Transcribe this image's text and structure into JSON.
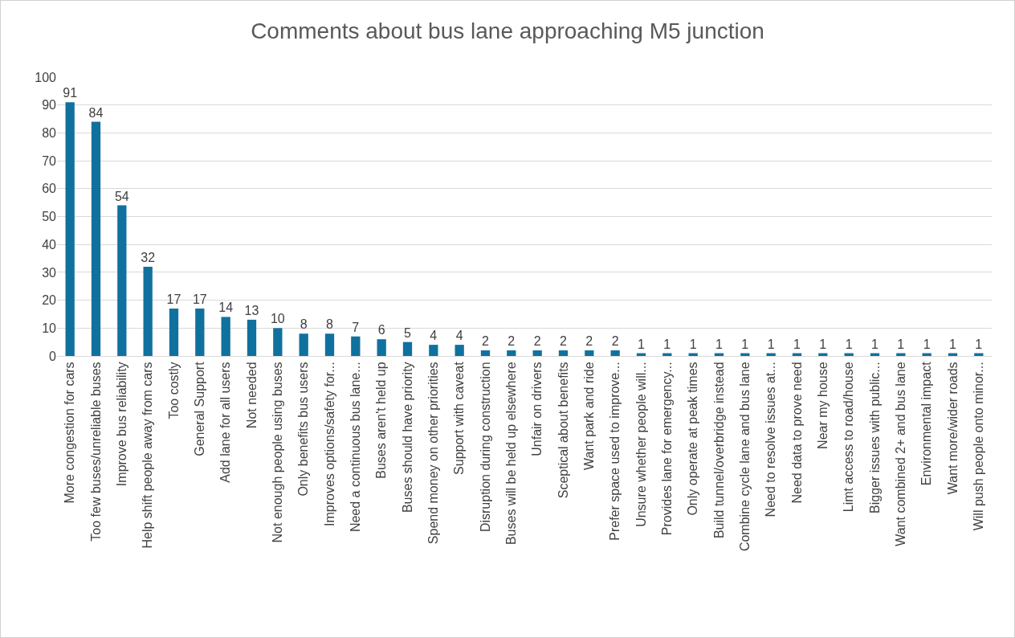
{
  "chart_data": {
    "type": "bar",
    "title": "Comments about bus lane approaching M5 junction",
    "categories": [
      "More congestion for cars",
      "Too few buses/unreliable buses",
      "Improve bus reliability",
      "Help shift people away from cars",
      "Too costly",
      "General Support",
      "Add lane for all users",
      "Not needed",
      "Not enough people using buses",
      "Only benefits bus users",
      "Improves options/safety for...",
      "Need a continuous bus lane...",
      "Buses aren't held up",
      "Buses should have priority",
      "Spend money on other priorities",
      "Support with caveat",
      "Disruption during construction",
      "Buses will be held up elsewhere",
      "Unfair on drivers",
      "Sceptical about benefits",
      "Want park and ride",
      "Prefer space used to improve...",
      "Unsure whether people will...",
      "Provides lane for emergency...",
      "Only operate at peak times",
      "Build tunnel/overbridge instead",
      "Combine cycle lane and bus lane",
      "Need to resolve issues at...",
      "Need data to prove need",
      "Near my house",
      "Limt access to road/house",
      "Bigger issues with public...",
      "Want combined 2+ and bus lane",
      "Environmental impact",
      "Want more/wider roads",
      "Will push people onto minor..."
    ],
    "values": [
      91,
      84,
      54,
      32,
      17,
      17,
      14,
      13,
      10,
      8,
      8,
      7,
      6,
      5,
      4,
      4,
      2,
      2,
      2,
      2,
      2,
      2,
      1,
      1,
      1,
      1,
      1,
      1,
      1,
      1,
      1,
      1,
      1,
      1,
      1,
      1
    ],
    "color": "#10719e",
    "ylim": [
      0,
      100
    ],
    "yticks": [
      0,
      10,
      20,
      30,
      40,
      50,
      60,
      70,
      80,
      90,
      100
    ],
    "grid": "y",
    "legend": false,
    "data_labels": true
  }
}
